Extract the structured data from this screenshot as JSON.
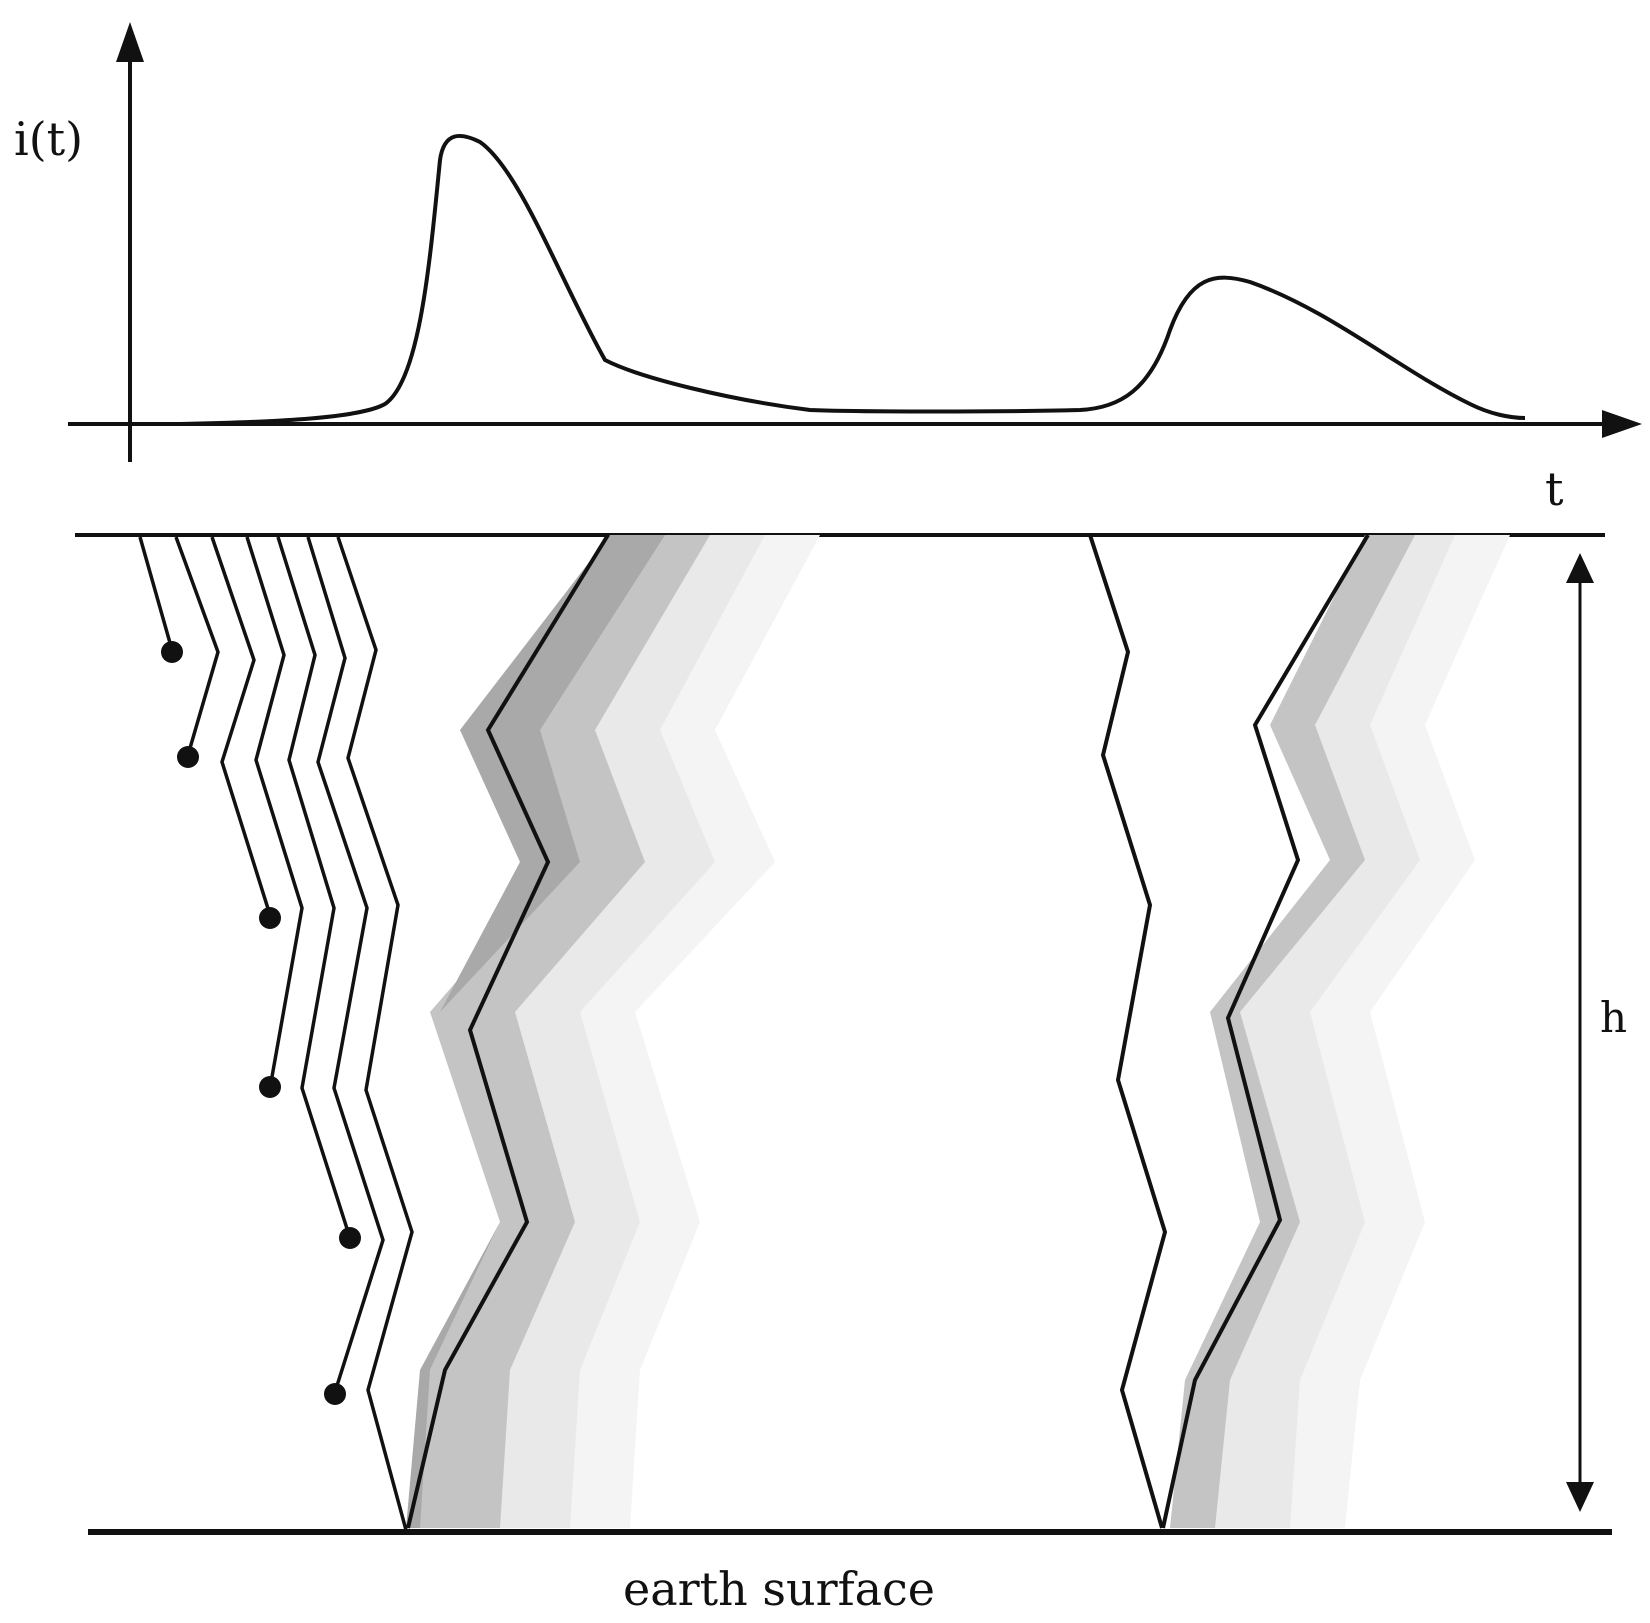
{
  "labels": {
    "y_axis": "i(t)",
    "x_axis": "t",
    "height": "h",
    "ground": "earth surface"
  },
  "colors": {
    "stroke": "#111111",
    "band_dark": "#a9a9a9",
    "band_mid": "#c4c4c4",
    "band_light": "#e9e9e9",
    "band_faint": "#f4f4f4"
  }
}
